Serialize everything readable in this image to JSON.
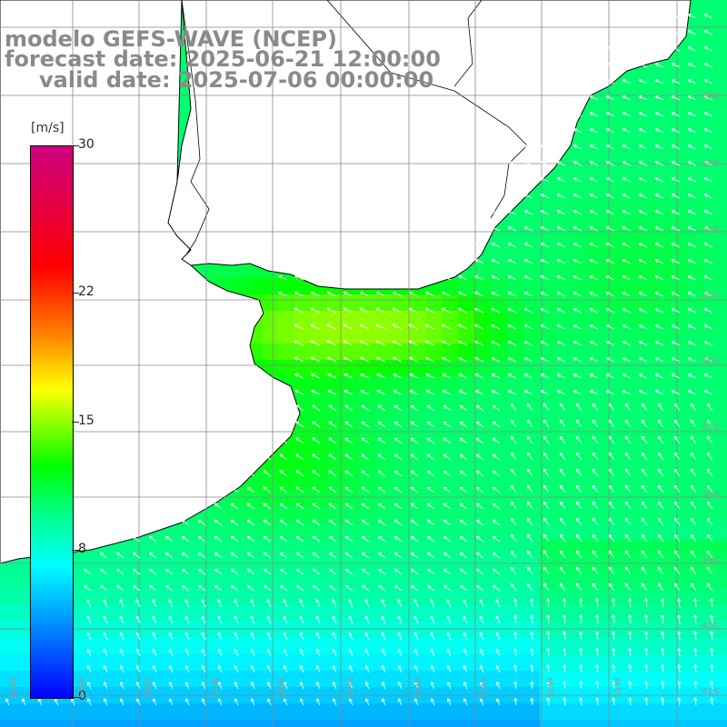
{
  "titles": {
    "model": "modelo GEFS-WAVE (NCEP)",
    "forecast": "forecast date: 2025-06-21 12:00:00",
    "valid": "valid date: 2025-07-06 00:00:00"
  },
  "colorbar": {
    "unit": "[m/s]",
    "min": 0,
    "max": 30,
    "ticks": [
      "30",
      "22",
      "15",
      "8",
      "0"
    ],
    "tick_values": [
      30,
      22,
      15,
      8,
      0
    ]
  },
  "colors": {
    "land": "#ffffff",
    "grid": "#888888",
    "coast": "#000000",
    "vector": "#ffffff"
  },
  "lat_labels": [
    "32S",
    "33S",
    "34S",
    "35S",
    "36S",
    "37S",
    "38S",
    "39S",
    "40S",
    "41S"
  ],
  "lon_labels": [
    "60W",
    "59W",
    "58W",
    "57W",
    "56W",
    "55W",
    "54W",
    "53W",
    "52W",
    "51W"
  ],
  "domain": {
    "lon_min": -60.3,
    "lon_max": -50.1,
    "lat_min": -41.3,
    "lat_max": -31.2
  }
}
